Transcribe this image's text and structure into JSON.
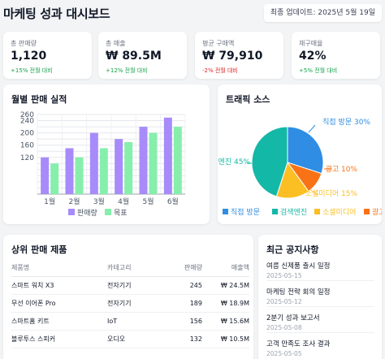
{
  "header": {
    "title": "마케팅 성과 대시보드",
    "updated": "최종 업데이트: 2025년 5월 19일"
  },
  "stats": [
    {
      "label": "총 판매량",
      "value": "1,120",
      "change": "+15% 전월 대비",
      "trend": "up"
    },
    {
      "label": "총 매출",
      "value": "₩ 89.5M",
      "change": "+12% 전월 대비",
      "trend": "up"
    },
    {
      "label": "평균 구매액",
      "value": "₩ 79,910",
      "change": "-2% 전월 대비",
      "trend": "down"
    },
    {
      "label": "재구매율",
      "value": "42%",
      "change": "+5% 전월 대비",
      "trend": "up"
    }
  ],
  "sales_chart": {
    "title": "월별 판매 실적"
  },
  "traffic_chart": {
    "title": "트래픽 소스"
  },
  "chart_data": [
    {
      "type": "bar",
      "title": "월별 판매 실적",
      "categories": [
        "1월",
        "2월",
        "3월",
        "4월",
        "5월",
        "6월"
      ],
      "series": [
        {
          "name": "판매량",
          "values": [
            120,
            150,
            200,
            180,
            220,
            250
          ],
          "color": "#a78bfa"
        },
        {
          "name": "목표",
          "values": [
            100,
            120,
            150,
            170,
            200,
            220
          ],
          "color": "#86efac"
        }
      ],
      "ylim": [
        0,
        260
      ],
      "yticks": [
        0,
        20,
        40,
        60,
        80,
        100,
        120,
        140,
        160,
        180,
        200,
        220,
        240,
        260
      ],
      "ytick_labels": [
        "",
        "",
        "",
        "",
        "",
        "",
        "120",
        "",
        "160",
        "",
        "200",
        "",
        "240",
        "260"
      ],
      "grid": true,
      "legend": "bottom"
    },
    {
      "type": "pie",
      "title": "트래픽 소스",
      "slices": [
        {
          "label": "직접 방문",
          "value": 30,
          "display": "직접 방문 30%",
          "color": "#2f8de4"
        },
        {
          "label": "광고",
          "value": 10,
          "display": "광고 10%",
          "color": "#f97316"
        },
        {
          "label": "소셜미디어",
          "value": 15,
          "display": "소셜미디어 15%",
          "color": "#fbbf24"
        },
        {
          "label": "검색엔진",
          "value": 45,
          "display": "검색엔진 45%",
          "color": "#14b8a6"
        }
      ],
      "legend_order": [
        "직접 방문",
        "검색엔진",
        "소셜미디어",
        "광고"
      ],
      "legend": "bottom"
    }
  ],
  "products": {
    "title": "상위 판매 제품",
    "columns": [
      "제품명",
      "카테고리",
      "판매량",
      "매출액"
    ],
    "rows": [
      [
        "스마트 워치 X3",
        "전자기기",
        "245",
        "₩ 24.5M"
      ],
      [
        "무선 이어폰 Pro",
        "전자기기",
        "189",
        "₩ 18.9M"
      ],
      [
        "스마트홈 키트",
        "IoT",
        "156",
        "₩ 15.6M"
      ],
      [
        "블루투스 스피커",
        "오디오",
        "132",
        "₩ 10.5M"
      ]
    ]
  },
  "notices": {
    "title": "최근 공지사항",
    "items": [
      {
        "title": "여름 신제품 출시 일정",
        "date": "2025-05-15"
      },
      {
        "title": "마케팅 전략 회의 일정",
        "date": "2025-05-12"
      },
      {
        "title": "2분기 성과 보고서",
        "date": "2025-05-08"
      },
      {
        "title": "고객 만족도 조사 결과",
        "date": "2025-05-05"
      }
    ]
  }
}
